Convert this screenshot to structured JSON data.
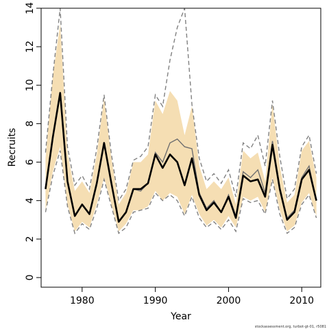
{
  "chart_data": {
    "type": "line",
    "xlabel": "Year",
    "ylabel": "Recruits",
    "xlim": [
      1974.4,
      2012.6
    ],
    "ylim": [
      -0.5,
      14
    ],
    "x_ticks": [
      1980,
      1990,
      2000,
      2010
    ],
    "y_ticks": [
      0,
      2,
      4,
      6,
      8,
      10,
      12,
      14
    ],
    "grid": false,
    "credit": "stockassessment.org, turbot-gt-01, r5081",
    "x": [
      1975,
      1976,
      1977,
      1978,
      1979,
      1980,
      1981,
      1982,
      1983,
      1984,
      1985,
      1986,
      1987,
      1988,
      1989,
      1990,
      1991,
      1992,
      1993,
      1994,
      1995,
      1996,
      1997,
      1998,
      1999,
      2000,
      2001,
      2002,
      2003,
      2004,
      2005,
      2006,
      2007,
      2008,
      2009,
      2010,
      2011,
      2012
    ],
    "series": [
      {
        "role": "confidence-band-upper",
        "color": "#f5deb3",
        "values": [
          6.2,
          10.5,
          13.2,
          6.5,
          4.5,
          5.0,
          4.4,
          6.4,
          9.3,
          6.2,
          3.8,
          4.4,
          6.0,
          6.0,
          6.4,
          9.2,
          8.5,
          9.7,
          9.2,
          7.4,
          8.9,
          5.8,
          4.6,
          5.0,
          4.6,
          5.2,
          3.8,
          6.6,
          6.2,
          6.5,
          5.0,
          9.0,
          5.8,
          3.9,
          4.3,
          6.6,
          7.1,
          5.2
        ]
      },
      {
        "role": "confidence-band-lower",
        "color": "#f5deb3",
        "values": [
          3.5,
          5.5,
          6.8,
          3.8,
          2.4,
          2.9,
          2.6,
          3.8,
          5.2,
          3.8,
          2.4,
          2.8,
          3.5,
          3.5,
          3.7,
          4.5,
          4.0,
          4.4,
          4.2,
          3.3,
          4.3,
          3.3,
          2.7,
          3.0,
          2.6,
          3.2,
          2.6,
          4.2,
          4.0,
          4.2,
          3.4,
          5.2,
          3.5,
          2.4,
          2.7,
          3.9,
          4.4,
          3.2
        ]
      },
      {
        "role": "estimate",
        "color": "#000000",
        "values": [
          4.6,
          7.3,
          9.6,
          5.0,
          3.2,
          3.8,
          3.3,
          4.9,
          7.0,
          4.9,
          2.9,
          3.4,
          4.6,
          4.6,
          4.9,
          6.4,
          5.7,
          6.4,
          6.0,
          4.8,
          6.2,
          4.3,
          3.5,
          3.9,
          3.4,
          4.2,
          3.1,
          5.3,
          5.0,
          5.1,
          4.2,
          6.9,
          4.6,
          3.0,
          3.4,
          5.1,
          5.6,
          4.0
        ]
      },
      {
        "role": "previous-estimate",
        "color": "#707070",
        "values": [
          4.6,
          7.3,
          9.6,
          5.0,
          3.2,
          3.8,
          3.3,
          4.9,
          7.0,
          4.9,
          2.9,
          3.4,
          4.6,
          4.5,
          4.9,
          6.5,
          6.0,
          7.0,
          7.2,
          6.8,
          6.7,
          4.4,
          3.6,
          4.0,
          3.4,
          4.3,
          3.2,
          5.5,
          5.2,
          5.6,
          4.4,
          7.1,
          4.7,
          3.1,
          3.5,
          5.2,
          5.8,
          4.0
        ]
      },
      {
        "role": "previous-band-upper",
        "color": "#808080",
        "values": [
          6.5,
          10.5,
          14.0,
          6.8,
          4.8,
          5.3,
          4.6,
          6.7,
          9.5,
          6.4,
          4.0,
          4.6,
          6.1,
          6.3,
          6.8,
          9.5,
          8.9,
          11.3,
          13.0,
          14.0,
          9.0,
          6.2,
          5.0,
          5.4,
          4.9,
          5.6,
          4.2,
          7.0,
          6.7,
          7.4,
          5.8,
          9.2,
          6.3,
          4.1,
          4.6,
          6.8,
          7.4,
          5.4
        ]
      },
      {
        "role": "previous-band-lower",
        "color": "#808080",
        "values": [
          3.4,
          5.3,
          6.6,
          3.7,
          2.3,
          2.8,
          2.5,
          3.6,
          5.1,
          3.7,
          2.3,
          2.6,
          3.4,
          3.5,
          3.6,
          4.4,
          4.0,
          4.3,
          4.0,
          3.2,
          4.2,
          3.1,
          2.6,
          2.9,
          2.5,
          3.0,
          2.4,
          4.1,
          3.9,
          4.0,
          3.3,
          5.1,
          3.3,
          2.3,
          2.6,
          3.8,
          4.3,
          3.1
        ]
      }
    ]
  }
}
